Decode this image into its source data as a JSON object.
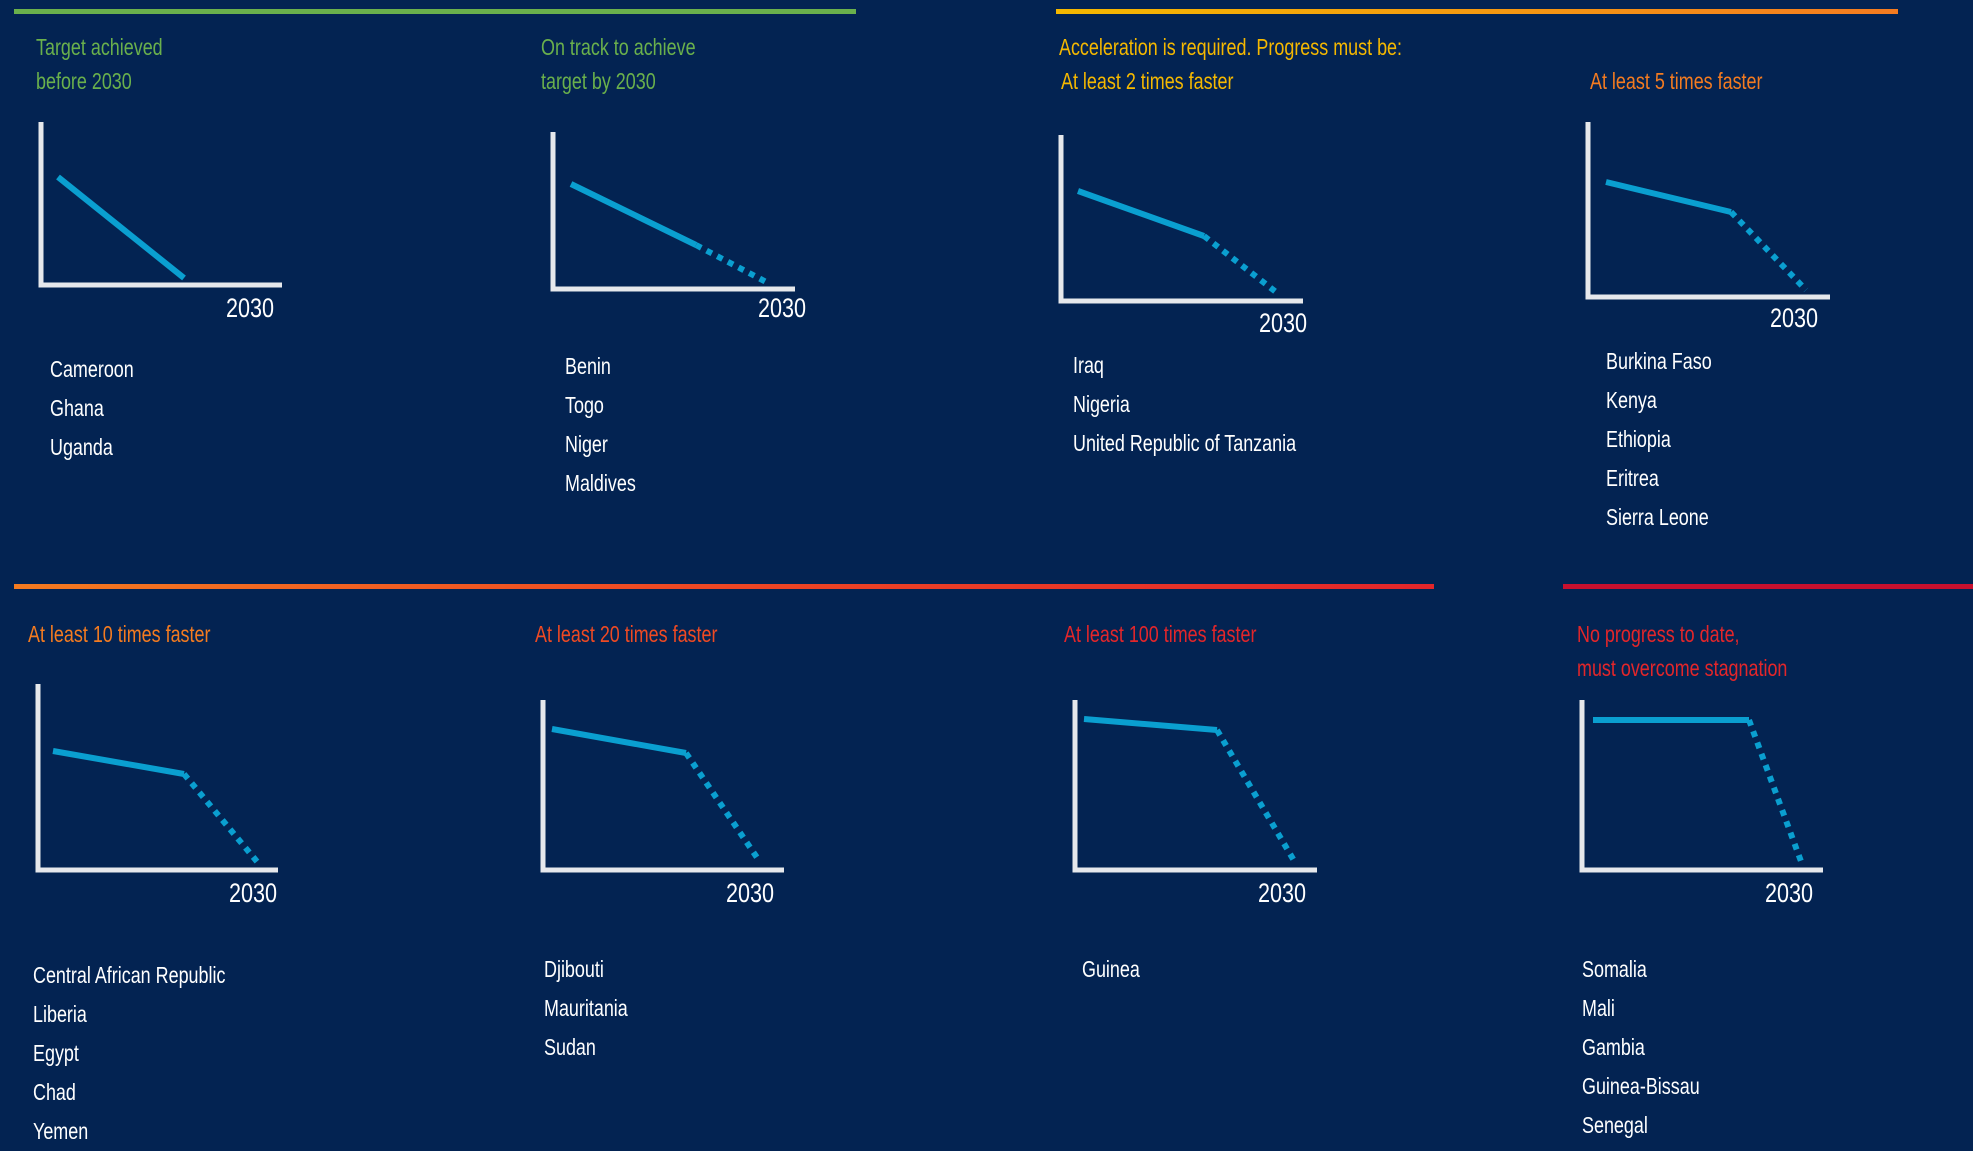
{
  "colors": {
    "background": "#032352",
    "axis": "#e6e8ec",
    "trend_line": "#0a9fd0",
    "green": "#6ab04c",
    "yellow": "#f5b800",
    "orange": "#f47b20",
    "red_orange": "#ef4a23",
    "red": "#e3262a",
    "dark_red": "#c8102e"
  },
  "groups": {
    "achieved_label_line1": "Target achieved",
    "achieved_label_line2": "before 2030",
    "on_track_label_line1": "On track to achieve",
    "on_track_label_line2": "target by 2030",
    "acceleration_label": "Acceleration is required. Progress must be:",
    "no_progress_label_line1": "No progress to date,",
    "no_progress_label_line2": "must overcome stagnation"
  },
  "panels": [
    {
      "id": "achieved",
      "heading": "",
      "axis_label": "2030",
      "countries": [
        "Cameroon",
        "Ghana",
        "Uganda"
      ],
      "trend": {
        "type": "solid_only",
        "slope_shape": "steep-reaching-zero-before-2030"
      }
    },
    {
      "id": "on-track",
      "heading": "",
      "axis_label": "2030",
      "countries": [
        "Benin",
        "Togo",
        "Niger",
        "Maldives"
      ],
      "trend": {
        "type": "solid_then_dotted",
        "acceleration": 1
      }
    },
    {
      "id": "2x",
      "heading": "At least 2 times faster",
      "axis_label": "2030",
      "countries": [
        "Iraq",
        "Nigeria",
        "United Republic of Tanzania"
      ],
      "trend": {
        "type": "solid_then_dotted",
        "acceleration": 2
      }
    },
    {
      "id": "5x",
      "heading": "At least 5 times faster",
      "axis_label": "2030",
      "countries": [
        "Burkina Faso",
        "Kenya",
        "Ethiopia",
        "Eritrea",
        "Sierra Leone"
      ],
      "trend": {
        "type": "solid_then_dotted",
        "acceleration": 5
      }
    },
    {
      "id": "10x",
      "heading": "At least 10 times faster",
      "axis_label": "2030",
      "countries": [
        "Central African Republic",
        "Liberia",
        "Egypt",
        "Chad",
        "Yemen"
      ],
      "trend": {
        "type": "solid_then_dotted",
        "acceleration": 10
      }
    },
    {
      "id": "20x",
      "heading": "At least 20 times faster",
      "axis_label": "2030",
      "countries": [
        "Djibouti",
        "Mauritania",
        "Sudan"
      ],
      "trend": {
        "type": "solid_then_dotted",
        "acceleration": 20
      }
    },
    {
      "id": "100x",
      "heading": "At least 100 times faster",
      "axis_label": "2030",
      "countries": [
        "Guinea"
      ],
      "trend": {
        "type": "solid_then_dotted",
        "acceleration": 100
      }
    },
    {
      "id": "no-progress",
      "heading": "",
      "axis_label": "2030",
      "countries": [
        "Somalia",
        "Mali",
        "Gambia",
        "Guinea-Bissau",
        "Senegal"
      ],
      "trend": {
        "type": "flat_then_dotted",
        "acceleration": "stagnation"
      }
    }
  ]
}
